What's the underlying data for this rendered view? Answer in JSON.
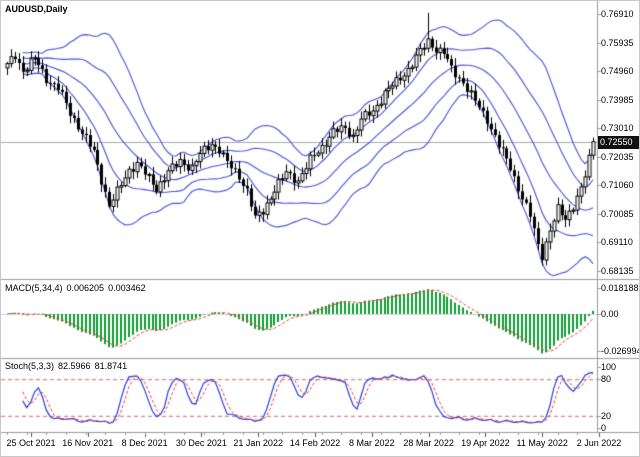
{
  "window": {
    "symbol_label": "AUDUSD,Daily"
  },
  "colors": {
    "background": "#ffffff",
    "candle": "#000000",
    "bollinger": "#4553d6",
    "macd_histogram": "#119b33",
    "signal_line": "#e8413c",
    "stoch_line": "#2541de",
    "level_line": "#d46a6a",
    "current_price_line": "#aaaaaa",
    "badge_bg": "#111111",
    "badge_text": "#ffffff",
    "divider": "#9a9a9a",
    "axis_text": "#000000"
  },
  "price_scale": {
    "labels": [
      "0.76910",
      "0.75935",
      "0.74960",
      "0.73985",
      "0.73010",
      "0.72035",
      "0.71060",
      "0.70085",
      "0.69110",
      "0.68135"
    ],
    "current_price": "0.72550"
  },
  "macd_panel": {
    "title": "MACD(5,34,4)",
    "value_main": "0.006205",
    "value_signal": "0.003462",
    "scale_labels": [
      "0.018188",
      "0.00",
      "-0.026994"
    ]
  },
  "stoch_panel": {
    "title": "Stoch(5,3,3)",
    "value_main": "82.5966",
    "value_signal": "81.8741",
    "scale_labels": [
      "100",
      "80",
      "20",
      "0"
    ],
    "levels": [
      80,
      20
    ]
  },
  "time_scale": {
    "labels": [
      "25 Oct 2021",
      "16 Nov 2021",
      "8 Dec 2021",
      "30 Dec 2021",
      "21 Jan 2022",
      "14 Feb 2022",
      "8 Mar 2022",
      "28 Mar 2022",
      "19 Apr 2022",
      "11 May 2022",
      "2 Jun 2022"
    ]
  },
  "chart_data": {
    "type": "candlestick",
    "symbol": "AUDUSD",
    "timeframe": "Daily",
    "bars": 150,
    "price_axis": {
      "max_label_value": 0.7691,
      "min_label_value": 0.68135,
      "step": 0.00975
    },
    "close_anchors": [
      [
        0,
        0.7515
      ],
      [
        2,
        0.7548
      ],
      [
        4,
        0.7498
      ],
      [
        7,
        0.7538
      ],
      [
        10,
        0.747
      ],
      [
        13,
        0.744
      ],
      [
        16,
        0.7352
      ],
      [
        19,
        0.7288
      ],
      [
        22,
        0.7218
      ],
      [
        24,
        0.7125
      ],
      [
        26,
        0.7038
      ],
      [
        28,
        0.7082
      ],
      [
        31,
        0.7158
      ],
      [
        33,
        0.7182
      ],
      [
        36,
        0.7128
      ],
      [
        38,
        0.7095
      ],
      [
        41,
        0.7152
      ],
      [
        44,
        0.7188
      ],
      [
        47,
        0.7165
      ],
      [
        49,
        0.7212
      ],
      [
        52,
        0.7248
      ],
      [
        54,
        0.7228
      ],
      [
        56,
        0.7182
      ],
      [
        59,
        0.7138
      ],
      [
        61,
        0.7088
      ],
      [
        63,
        0.6992
      ],
      [
        65,
        0.7018
      ],
      [
        68,
        0.7092
      ],
      [
        71,
        0.7148
      ],
      [
        74,
        0.7122
      ],
      [
        77,
        0.7192
      ],
      [
        80,
        0.7238
      ],
      [
        83,
        0.7288
      ],
      [
        86,
        0.7302
      ],
      [
        88,
        0.7272
      ],
      [
        90,
        0.7332
      ],
      [
        93,
        0.7358
      ],
      [
        96,
        0.7422
      ],
      [
        99,
        0.7458
      ],
      [
        102,
        0.7502
      ],
      [
        105,
        0.7562
      ],
      [
        107,
        0.7598
      ],
      [
        109,
        0.7572
      ],
      [
        111,
        0.7558
      ],
      [
        113,
        0.7502
      ],
      [
        116,
        0.7458
      ],
      [
        119,
        0.7392
      ],
      [
        122,
        0.7332
      ],
      [
        125,
        0.7242
      ],
      [
        128,
        0.7168
      ],
      [
        131,
        0.7062
      ],
      [
        133,
        0.7002
      ],
      [
        135,
        0.6902
      ],
      [
        136,
        0.6868
      ],
      [
        138,
        0.6952
      ],
      [
        140,
        0.7022
      ],
      [
        142,
        0.6992
      ],
      [
        144,
        0.7038
      ],
      [
        146,
        0.7092
      ],
      [
        147,
        0.7138
      ],
      [
        148,
        0.7195
      ],
      [
        149,
        0.7255
      ]
    ],
    "spike_high": {
      "index": 107,
      "price": 0.7695
    },
    "spike_low": {
      "index": 136,
      "price": 0.6832
    },
    "bollinger": {
      "period": 20,
      "deviations": [
        1,
        2
      ]
    },
    "macd": {
      "fast": 5,
      "slow": 34,
      "signal": 4
    },
    "stochastic": {
      "k": 5,
      "slowing": 3,
      "d": 3
    },
    "indicator_values": {
      "macd": 0.006205,
      "macd_signal": 0.003462,
      "stoch_k": 82.5966,
      "stoch_d": 81.8741
    },
    "macd_axis": {
      "top": 0.018188,
      "zero": 0.0,
      "bottom": -0.026994
    },
    "stoch_axis": {
      "ticks": [
        100,
        80,
        20,
        0
      ],
      "range": [
        0,
        100
      ]
    }
  }
}
